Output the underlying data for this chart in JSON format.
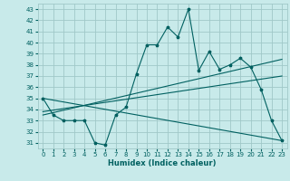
{
  "xlabel": "Humidex (Indice chaleur)",
  "bg_color": "#c8eaea",
  "grid_color": "#a0c8c8",
  "line_color": "#006060",
  "xlim": [
    -0.5,
    23.5
  ],
  "ylim": [
    30.5,
    43.5
  ],
  "yticks": [
    31,
    32,
    33,
    34,
    35,
    36,
    37,
    38,
    39,
    40,
    41,
    42,
    43
  ],
  "xticks": [
    0,
    1,
    2,
    3,
    4,
    5,
    6,
    7,
    8,
    9,
    10,
    11,
    12,
    13,
    14,
    15,
    16,
    17,
    18,
    19,
    20,
    21,
    22,
    23
  ],
  "line1_x": [
    0,
    1,
    2,
    3,
    4,
    5,
    6,
    7,
    8,
    9,
    10,
    11,
    12,
    13,
    14,
    15,
    16,
    17,
    18,
    19,
    20,
    21,
    22,
    23
  ],
  "line1_y": [
    35,
    33.5,
    33,
    33,
    33,
    31,
    30.8,
    33.5,
    34.2,
    37.2,
    39.8,
    39.8,
    41.4,
    40.5,
    43,
    37.5,
    39.2,
    37.6,
    38,
    38.6,
    37.8,
    35.8,
    33,
    31.2
  ],
  "line2_x": [
    0,
    23
  ],
  "line2_y": [
    33.5,
    38.5
  ],
  "line3_x": [
    0,
    23
  ],
  "line3_y": [
    35.0,
    31.2
  ],
  "line4_x": [
    0,
    23
  ],
  "line4_y": [
    33.8,
    37.0
  ]
}
